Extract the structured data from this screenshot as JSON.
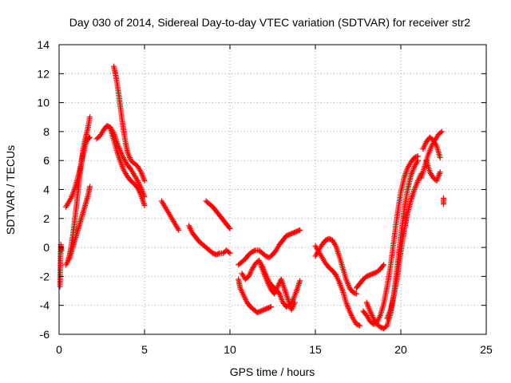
{
  "chart_data": {
    "type": "scatter",
    "title": "Day 030 of 2014, Sidereal Day-to-day VTEC variation (SDTVAR) for receiver str2",
    "xlabel": "GPS time / hours",
    "ylabel": "SDTVAR / TECUs",
    "xlim": [
      0,
      25
    ],
    "ylim": [
      -6,
      14
    ],
    "xticks": [
      "0",
      "5",
      "10",
      "15",
      "20",
      "25"
    ],
    "yticks": [
      "14",
      "12",
      "10",
      "8",
      "6",
      "4",
      "2",
      "0",
      "-2",
      "-4",
      "-6"
    ],
    "grid": true,
    "marker": "+",
    "color": "#ff0000",
    "series": [
      {
        "x": [
          0.05,
          0.1,
          0.15
        ],
        "y": [
          -2.7,
          0.2,
          -0.2
        ]
      },
      {
        "x": [
          0.4,
          0.5,
          0.6,
          0.7,
          0.8,
          0.9,
          1.0,
          1.1,
          1.2,
          1.3,
          1.4,
          1.5,
          1.6,
          1.7,
          1.8
        ],
        "y": [
          -1.2,
          -1.0,
          -0.6,
          0.0,
          0.8,
          1.7,
          2.7,
          3.8,
          4.8,
          5.8,
          6.7,
          7.3,
          7.8,
          8.3,
          9.0
        ]
      },
      {
        "x": [
          0.4,
          0.5,
          0.6,
          0.7,
          0.8,
          0.9,
          1.0,
          1.1,
          1.2,
          1.3,
          1.4,
          1.5,
          1.6,
          1.7,
          1.8
        ],
        "y": [
          2.8,
          3.0,
          3.2,
          3.4,
          3.7,
          4.0,
          4.4,
          4.8,
          5.3,
          5.8,
          6.4,
          6.9,
          7.3,
          7.5,
          7.6
        ]
      },
      {
        "x": [
          0.6,
          0.7,
          0.8,
          0.9,
          1.0,
          1.1,
          1.2,
          1.3,
          1.4,
          1.5,
          1.6,
          1.7,
          1.8
        ],
        "y": [
          -0.8,
          -0.4,
          0.0,
          0.4,
          0.8,
          1.2,
          1.6,
          2.0,
          2.4,
          2.8,
          3.2,
          3.6,
          4.2
        ]
      },
      {
        "x": [
          2.2,
          2.4,
          2.6,
          2.8,
          3.0,
          3.2,
          3.4,
          3.6,
          3.8,
          4.0,
          4.2,
          4.4,
          4.6,
          4.8,
          5.0
        ],
        "y": [
          7.5,
          7.7,
          8.1,
          8.4,
          8.3,
          7.9,
          7.2,
          6.6,
          6.1,
          5.7,
          5.4,
          5.0,
          4.6,
          4.1,
          3.5
        ]
      },
      {
        "x": [
          3.2,
          3.3,
          3.4,
          3.5,
          3.6,
          3.7,
          3.8,
          3.9,
          4.0,
          4.2,
          4.4,
          4.6,
          4.8,
          5.0
        ],
        "y": [
          12.5,
          12.0,
          11.3,
          10.5,
          9.6,
          8.7,
          7.9,
          7.2,
          6.6,
          6.0,
          5.8,
          5.6,
          5.2,
          4.6
        ]
      },
      {
        "x": [
          3.0,
          3.2,
          3.4,
          3.6,
          3.8,
          4.0,
          4.2,
          4.4,
          4.6,
          4.8,
          5.0
        ],
        "y": [
          8.2,
          7.4,
          6.6,
          5.9,
          5.3,
          4.9,
          4.6,
          4.4,
          4.1,
          3.6,
          2.9
        ]
      },
      {
        "x": [
          6.0,
          6.2,
          6.4,
          6.6,
          6.8,
          7.0
        ],
        "y": [
          3.2,
          2.8,
          2.4,
          2.0,
          1.6,
          1.2
        ]
      },
      {
        "x": [
          7.6,
          7.8,
          8.0,
          8.2,
          8.4,
          8.6,
          8.8,
          9.0,
          9.2,
          9.4,
          9.6,
          9.8,
          10.0
        ],
        "y": [
          1.5,
          1.0,
          0.7,
          0.4,
          0.2,
          0.0,
          -0.2,
          -0.4,
          -0.5,
          -0.4,
          -0.4,
          -0.2,
          -0.4
        ]
      },
      {
        "x": [
          8.6,
          8.8,
          9.0,
          9.2,
          9.4,
          9.6,
          9.8,
          10.0
        ],
        "y": [
          3.2,
          3.0,
          2.8,
          2.5,
          2.2,
          1.9,
          1.6,
          1.3
        ]
      },
      {
        "x": [
          10.5,
          10.6,
          10.8,
          11.0,
          11.2,
          11.4,
          11.6,
          11.8,
          12.0,
          12.2,
          12.4
        ],
        "y": [
          -2.2,
          -2.8,
          -3.3,
          -3.8,
          -4.1,
          -4.3,
          -4.5,
          -4.4,
          -4.3,
          -4.2,
          -4.1
        ]
      },
      {
        "x": [
          10.5,
          10.7,
          10.9,
          11.1,
          11.3,
          11.5,
          11.7,
          11.9,
          12.1,
          12.3,
          12.5,
          12.7,
          12.9,
          13.1,
          13.3,
          13.5,
          13.7,
          13.9,
          14.1
        ],
        "y": [
          -1.2,
          -1.0,
          -0.8,
          -0.5,
          -0.3,
          -0.2,
          -0.2,
          -0.4,
          -0.6,
          -0.7,
          -0.5,
          -0.2,
          0.2,
          0.5,
          0.8,
          0.9,
          1.0,
          1.1,
          1.2
        ]
      },
      {
        "x": [
          10.7,
          10.9,
          11.1,
          11.3,
          11.5,
          11.7,
          11.9,
          12.1,
          12.3,
          12.5,
          12.7,
          12.9,
          13.1,
          13.3,
          13.5,
          13.7,
          13.9,
          14.1
        ],
        "y": [
          -1.8,
          -2.2,
          -2.0,
          -1.5,
          -1.1,
          -0.9,
          -1.3,
          -1.9,
          -2.4,
          -2.7,
          -2.9,
          -3.2,
          -3.8,
          -4.1,
          -4.0,
          -3.6,
          -3.0,
          -2.3
        ]
      },
      {
        "x": [
          11.8,
          12.0,
          12.2,
          12.4,
          12.6,
          12.8,
          13.0,
          13.2,
          13.4,
          13.6,
          13.8
        ],
        "y": [
          -1.2,
          -1.8,
          -2.4,
          -2.9,
          -3.2,
          -2.7,
          -2.2,
          -2.9,
          -3.6,
          -4.3,
          -3.8
        ]
      },
      {
        "x": [
          15.0,
          15.2,
          15.4,
          15.6,
          15.8,
          16.0,
          16.2,
          16.4,
          16.6,
          16.8,
          17.0,
          17.2,
          17.4
        ],
        "y": [
          -0.6,
          -0.2,
          0.2,
          0.5,
          0.6,
          0.5,
          0.1,
          -0.6,
          -1.4,
          -2.2,
          -2.8,
          -3.1,
          -3.2
        ]
      },
      {
        "x": [
          15.0,
          15.2,
          15.4,
          15.6,
          15.8,
          16.0,
          16.2,
          16.4,
          16.6,
          16.8,
          17.0,
          17.2,
          17.4,
          17.6
        ],
        "y": [
          0.1,
          -0.3,
          -0.7,
          -1.1,
          -1.4,
          -1.6,
          -1.9,
          -2.4,
          -3.0,
          -3.8,
          -4.4,
          -4.9,
          -5.3,
          -5.4
        ]
      },
      {
        "x": [
          17.4,
          17.6,
          17.8,
          18.0,
          18.2,
          18.4,
          18.6,
          18.8,
          19.0
        ],
        "y": [
          -2.8,
          -2.5,
          -2.2,
          -2.0,
          -1.9,
          -1.8,
          -1.7,
          -1.5,
          -1.2
        ]
      },
      {
        "x": [
          17.8,
          18.0,
          18.2,
          18.4,
          18.6,
          18.8,
          19.0,
          19.2,
          19.4,
          19.6,
          19.8,
          20.0,
          20.2,
          20.4,
          20.6,
          20.8,
          21.0
        ],
        "y": [
          -4.4,
          -4.7,
          -5.1,
          -5.3,
          -5.2,
          -4.7,
          -3.9,
          -2.7,
          -1.3,
          0.5,
          2.3,
          3.8,
          4.8,
          5.5,
          5.9,
          6.2,
          6.3
        ]
      },
      {
        "x": [
          18.0,
          18.2,
          18.4,
          18.6,
          18.8,
          19.0,
          19.2,
          19.4,
          19.6,
          19.8,
          20.0,
          20.2,
          20.4,
          20.6,
          20.8,
          21.0
        ],
        "y": [
          -3.8,
          -4.4,
          -4.9,
          -5.3,
          -5.5,
          -5.6,
          -5.4,
          -4.6,
          -3.2,
          -1.3,
          0.8,
          2.6,
          4.0,
          5.0,
          5.6,
          6.0
        ]
      },
      {
        "x": [
          19.2,
          19.4,
          19.6,
          19.8,
          20.0,
          20.2,
          20.4,
          20.6,
          20.8,
          21.0,
          21.2
        ],
        "y": [
          -4.9,
          -4.3,
          -3.3,
          -2.0,
          -0.3,
          1.2,
          2.4,
          3.3,
          4.0,
          4.6,
          5.1
        ]
      },
      {
        "x": [
          21.2,
          21.4,
          21.6,
          21.8,
          22.0,
          22.2,
          22.4
        ],
        "y": [
          4.8,
          5.6,
          6.4,
          7.0,
          7.4,
          7.8,
          8.0
        ]
      },
      {
        "x": [
          21.3,
          21.5,
          21.7,
          21.9,
          22.1,
          22.3
        ],
        "y": [
          6.8,
          7.3,
          7.6,
          7.4,
          7.0,
          6.2
        ]
      },
      {
        "x": [
          21.5,
          21.7,
          21.9,
          22.1,
          22.3
        ],
        "y": [
          6.0,
          5.2,
          4.8,
          4.6,
          5.2
        ]
      },
      {
        "x": [
          22.5,
          22.5
        ],
        "y": [
          3.0,
          3.4
        ]
      }
    ]
  }
}
